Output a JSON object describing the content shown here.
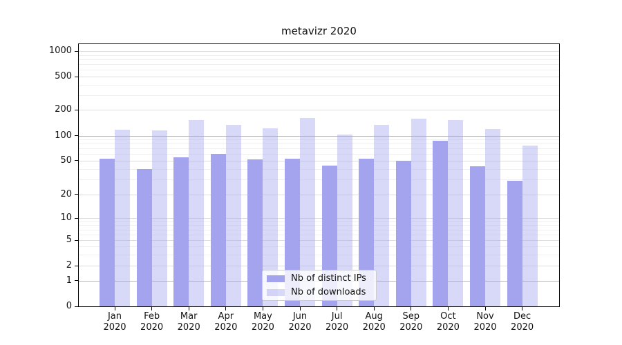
{
  "chart_data": {
    "type": "bar",
    "title": "metavizr 2020",
    "year": "2020",
    "months": [
      "Jan",
      "Feb",
      "Mar",
      "Apr",
      "May",
      "Jun",
      "Jul",
      "Aug",
      "Sep",
      "Oct",
      "Nov",
      "Dec"
    ],
    "categories": [
      "Jan 2020",
      "Feb 2020",
      "Mar 2020",
      "Apr 2020",
      "May 2020",
      "Jun 2020",
      "Jul 2020",
      "Aug 2020",
      "Sep 2020",
      "Oct 2020",
      "Nov 2020",
      "Dec 2020"
    ],
    "series": [
      {
        "name": "Nb of distinct IPs",
        "color": "#a3a3ee",
        "values": [
          53,
          40,
          55,
          61,
          52,
          53,
          44,
          53,
          50,
          87,
          43,
          29
        ]
      },
      {
        "name": "Nb of downloads",
        "color": "rgba(163,163,238,0.42)",
        "color_on_white": "#d8d8f7",
        "values": [
          118,
          116,
          151,
          133,
          122,
          161,
          104,
          134,
          157,
          152,
          120,
          76
        ]
      }
    ],
    "xlabel": "",
    "ylabel": "",
    "yscale": "symlog",
    "ylim": [
      0,
      1200
    ],
    "yticks": [
      1000,
      500,
      200,
      100,
      50,
      20,
      10,
      5,
      2,
      1,
      0
    ],
    "yticks_minor": [
      3,
      4,
      6,
      7,
      8,
      9,
      30,
      40,
      60,
      70,
      80,
      90,
      300,
      400,
      600,
      700,
      800,
      900
    ],
    "emphasized_gridlines": [
      1,
      100
    ],
    "grid": "both",
    "legend_position": "lower center"
  }
}
